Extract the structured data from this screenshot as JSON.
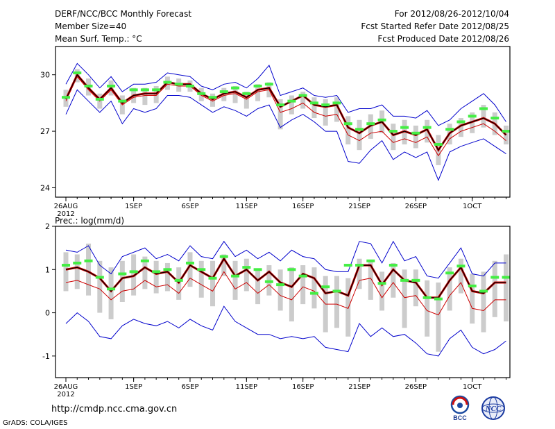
{
  "header": {
    "title": "DERF/NCC/BCC Monthly Forecast",
    "member_size": "Member Size=40",
    "variable": "Mean Surf. Temp.: °C",
    "period": "For 2012/08/26-2012/10/04",
    "start_ref": "Fcst Started Refer Date 2012/08/25",
    "produced": "Fcst Produced Date 2012/08/26"
  },
  "footer": {
    "url": "http://cmdp.ncc.cma.gov.cn",
    "grads": "GrADS: COLA/IGES",
    "logo_bcc": "BCC",
    "logo_ncc": "NCC"
  },
  "colors": {
    "ensemble_mean": "#000000",
    "median_line": "#cc0000",
    "envelope": "#0000cc",
    "members_bar": "#cccccc",
    "marker": "#44ee44"
  },
  "chart_data": [
    {
      "type": "line",
      "title": "Mean Surf. Temp.: °C",
      "xlabel": "",
      "ylabel": "°C",
      "ylim": [
        23.5,
        31.5
      ],
      "yticks": [
        24,
        27,
        30
      ],
      "xticks": [
        {
          "day": 0,
          "label": "26AUG",
          "sub": "2012"
        },
        {
          "day": 6,
          "label": "1SEP"
        },
        {
          "day": 11,
          "label": "6SEP"
        },
        {
          "day": 16,
          "label": "11SEP"
        },
        {
          "day": 21,
          "label": "16SEP"
        },
        {
          "day": 26,
          "label": "21SEP"
        },
        {
          "day": 31,
          "label": "26SEP"
        },
        {
          "day": 36,
          "label": "1OCT"
        }
      ],
      "x": [
        0,
        1,
        2,
        3,
        4,
        5,
        6,
        7,
        8,
        9,
        10,
        11,
        12,
        13,
        14,
        15,
        16,
        17,
        18,
        19,
        20,
        21,
        22,
        23,
        24,
        25,
        26,
        27,
        28,
        29,
        30,
        31,
        32,
        33,
        34,
        35,
        36,
        37,
        38,
        39
      ],
      "series": [
        {
          "name": "Ensemble mean",
          "values": [
            28.7,
            30.0,
            29.3,
            28.7,
            29.3,
            28.5,
            28.9,
            29.0,
            29.0,
            29.6,
            29.5,
            29.5,
            29.0,
            28.7,
            29.0,
            29.1,
            28.8,
            29.2,
            29.3,
            28.3,
            28.6,
            28.9,
            28.4,
            28.3,
            28.4,
            27.2,
            26.9,
            27.3,
            27.5,
            26.8,
            27.0,
            26.8,
            27.1,
            26.0,
            26.9,
            27.3,
            27.5,
            27.7,
            27.4,
            26.8
          ]
        },
        {
          "name": "Median",
          "values": [
            28.6,
            29.9,
            29.2,
            28.6,
            29.2,
            28.4,
            28.8,
            28.9,
            28.9,
            29.5,
            29.4,
            29.4,
            28.9,
            28.6,
            28.9,
            29.0,
            28.7,
            29.1,
            29.2,
            28.0,
            28.2,
            28.5,
            28.0,
            27.8,
            27.9,
            26.8,
            26.5,
            26.9,
            27.0,
            26.4,
            26.6,
            26.4,
            26.7,
            25.7,
            26.6,
            27.0,
            27.2,
            27.4,
            27.0,
            26.5
          ]
        },
        {
          "name": "Envelope max",
          "values": [
            29.5,
            30.6,
            30.0,
            29.3,
            29.9,
            29.1,
            29.5,
            29.5,
            29.6,
            30.1,
            30.0,
            29.9,
            29.4,
            29.2,
            29.5,
            29.6,
            29.3,
            29.8,
            30.5,
            28.9,
            29.1,
            29.3,
            28.9,
            28.8,
            28.9,
            28.0,
            28.2,
            28.2,
            28.4,
            27.8,
            27.8,
            27.7,
            28.1,
            27.3,
            27.6,
            28.2,
            28.6,
            29.0,
            28.4,
            27.5
          ]
        },
        {
          "name": "Envelope min",
          "values": [
            27.9,
            29.2,
            28.6,
            28.0,
            28.6,
            27.4,
            28.2,
            28.0,
            28.2,
            28.9,
            28.9,
            28.8,
            28.4,
            28.0,
            28.3,
            28.1,
            27.8,
            28.2,
            28.4,
            27.2,
            27.6,
            27.9,
            27.5,
            27.0,
            27.0,
            25.4,
            25.3,
            26.0,
            26.5,
            25.5,
            25.9,
            25.6,
            25.9,
            24.4,
            25.9,
            26.2,
            26.4,
            26.6,
            26.2,
            25.8
          ]
        },
        {
          "name": "Bar top",
          "values": [
            29.2,
            30.3,
            29.8,
            29.0,
            29.7,
            28.9,
            29.3,
            29.3,
            29.4,
            29.9,
            29.8,
            29.7,
            29.3,
            29.0,
            29.3,
            29.4,
            29.1,
            29.5,
            29.6,
            28.7,
            28.9,
            29.1,
            28.8,
            28.7,
            28.8,
            27.8,
            27.6,
            27.9,
            28.1,
            27.4,
            27.6,
            27.3,
            27.6,
            26.8,
            27.4,
            27.7,
            28.0,
            28.4,
            28.0,
            27.3
          ]
        },
        {
          "name": "Bar bottom",
          "values": [
            28.3,
            29.6,
            28.9,
            28.2,
            28.9,
            27.9,
            28.5,
            28.4,
            28.5,
            29.2,
            29.1,
            29.1,
            28.6,
            28.3,
            28.6,
            28.5,
            28.2,
            28.6,
            28.8,
            27.1,
            27.9,
            28.2,
            27.7,
            27.3,
            27.5,
            26.3,
            26.0,
            26.6,
            26.9,
            26.0,
            26.3,
            26.1,
            26.4,
            25.2,
            26.3,
            26.7,
            26.9,
            27.2,
            26.8,
            26.3
          ]
        },
        {
          "name": "Green markers",
          "values": [
            28.8,
            30.1,
            29.4,
            28.7,
            29.4,
            28.6,
            29.2,
            29.2,
            29.2,
            29.6,
            29.5,
            29.4,
            29.0,
            28.8,
            29.1,
            29.3,
            29.0,
            29.4,
            29.5,
            28.4,
            28.6,
            28.9,
            28.5,
            28.4,
            28.5,
            27.4,
            27.1,
            27.4,
            27.6,
            27.0,
            27.2,
            26.9,
            27.2,
            26.3,
            27.1,
            27.5,
            27.8,
            28.2,
            27.7,
            27.0
          ]
        }
      ]
    },
    {
      "type": "line",
      "title": "Prec.: log(mm/d)",
      "xlabel": "",
      "ylabel": "log(mm/d)",
      "ylim": [
        -1.5,
        2.0
      ],
      "yticks": [
        -1,
        0,
        1,
        2
      ],
      "xticks": [
        {
          "day": 0,
          "label": "26AUG",
          "sub": "2012"
        },
        {
          "day": 6,
          "label": "1SEP"
        },
        {
          "day": 11,
          "label": "6SEP"
        },
        {
          "day": 16,
          "label": "11SEP"
        },
        {
          "day": 21,
          "label": "16SEP"
        },
        {
          "day": 26,
          "label": "21SEP"
        },
        {
          "day": 31,
          "label": "26SEP"
        },
        {
          "day": 36,
          "label": "1OCT"
        }
      ],
      "x": [
        0,
        1,
        2,
        3,
        4,
        5,
        6,
        7,
        8,
        9,
        10,
        11,
        12,
        13,
        14,
        15,
        16,
        17,
        18,
        19,
        20,
        21,
        22,
        23,
        24,
        25,
        26,
        27,
        28,
        29,
        30,
        31,
        32,
        33,
        34,
        35,
        36,
        37,
        38,
        39
      ],
      "series": [
        {
          "name": "Ensemble mean",
          "values": [
            1.0,
            1.05,
            0.95,
            0.8,
            0.5,
            0.8,
            0.85,
            1.05,
            0.9,
            0.95,
            0.7,
            1.1,
            0.95,
            0.8,
            1.25,
            0.85,
            1.0,
            0.75,
            0.95,
            0.7,
            0.6,
            0.9,
            0.8,
            0.45,
            0.5,
            0.4,
            1.1,
            1.1,
            0.65,
            1.0,
            0.75,
            0.7,
            0.35,
            0.35,
            0.75,
            1.05,
            0.5,
            0.45,
            0.7,
            0.7
          ]
        },
        {
          "name": "Median",
          "values": [
            0.7,
            0.75,
            0.65,
            0.55,
            0.3,
            0.5,
            0.55,
            0.75,
            0.6,
            0.65,
            0.45,
            0.8,
            0.65,
            0.5,
            0.95,
            0.55,
            0.7,
            0.45,
            0.65,
            0.4,
            0.3,
            0.6,
            0.5,
            0.2,
            0.2,
            0.1,
            0.75,
            0.8,
            0.35,
            0.7,
            0.35,
            0.4,
            0.05,
            -0.05,
            0.4,
            0.7,
            0.1,
            0.05,
            0.3,
            0.3
          ]
        },
        {
          "name": "Envelope max",
          "values": [
            1.45,
            1.4,
            1.55,
            1.1,
            0.9,
            1.3,
            1.4,
            1.5,
            1.25,
            1.35,
            1.2,
            1.55,
            1.3,
            1.25,
            1.65,
            1.3,
            1.45,
            1.25,
            1.4,
            1.2,
            1.45,
            1.3,
            1.25,
            1.0,
            0.95,
            0.95,
            1.65,
            1.6,
            1.15,
            1.65,
            1.2,
            1.3,
            0.85,
            0.8,
            1.15,
            1.5,
            0.9,
            0.85,
            1.15,
            1.15
          ]
        },
        {
          "name": "Envelope min",
          "values": [
            -0.25,
            0.0,
            -0.2,
            -0.55,
            -0.6,
            -0.3,
            -0.15,
            -0.25,
            -0.3,
            -0.2,
            -0.35,
            -0.15,
            -0.3,
            -0.4,
            0.15,
            -0.2,
            -0.35,
            -0.5,
            -0.5,
            -0.6,
            -0.55,
            -0.6,
            -0.55,
            -0.8,
            -0.85,
            -0.9,
            -0.25,
            -0.55,
            -0.35,
            -0.55,
            -0.5,
            -0.7,
            -0.95,
            -1.0,
            -0.6,
            -0.4,
            -0.8,
            -0.95,
            -0.85,
            -0.65
          ]
        },
        {
          "name": "Bar top",
          "values": [
            1.4,
            1.35,
            1.6,
            1.2,
            1.05,
            1.2,
            1.35,
            1.3,
            1.2,
            1.15,
            1.05,
            1.4,
            1.2,
            1.2,
            1.35,
            1.2,
            1.25,
            1.0,
            1.1,
            1.0,
            1.05,
            1.1,
            1.05,
            0.85,
            0.85,
            0.8,
            1.25,
            1.2,
            0.95,
            1.15,
            1.0,
            1.0,
            0.75,
            0.7,
            1.05,
            1.25,
            0.9,
            0.95,
            1.2,
            1.35
          ]
        },
        {
          "name": "Bar bottom",
          "values": [
            0.5,
            0.55,
            0.4,
            0.0,
            -0.15,
            0.25,
            0.4,
            0.55,
            0.45,
            0.5,
            0.3,
            0.6,
            0.35,
            0.15,
            0.85,
            0.3,
            0.5,
            0.2,
            0.4,
            0.05,
            -0.2,
            0.2,
            0.1,
            -0.45,
            -0.35,
            -0.55,
            0.55,
            0.3,
            0.05,
            0.35,
            -0.35,
            0.15,
            -0.55,
            -0.9,
            0.05,
            0.45,
            -0.25,
            -0.45,
            -0.1,
            -0.2
          ]
        },
        {
          "name": "Green markers",
          "values": [
            1.1,
            1.15,
            1.2,
            0.82,
            0.55,
            0.9,
            0.95,
            1.2,
            0.95,
            1.0,
            0.75,
            1.15,
            1.0,
            0.8,
            1.3,
            0.85,
            1.05,
            1.0,
            0.72,
            0.65,
            1.0,
            0.85,
            0.45,
            0.6,
            0.5,
            1.1,
            1.1,
            1.2,
            0.68,
            1.1,
            0.75,
            0.75,
            0.35,
            0.32,
            0.92,
            1.08,
            0.62,
            0.5,
            0.82,
            0.82
          ]
        }
      ]
    }
  ]
}
